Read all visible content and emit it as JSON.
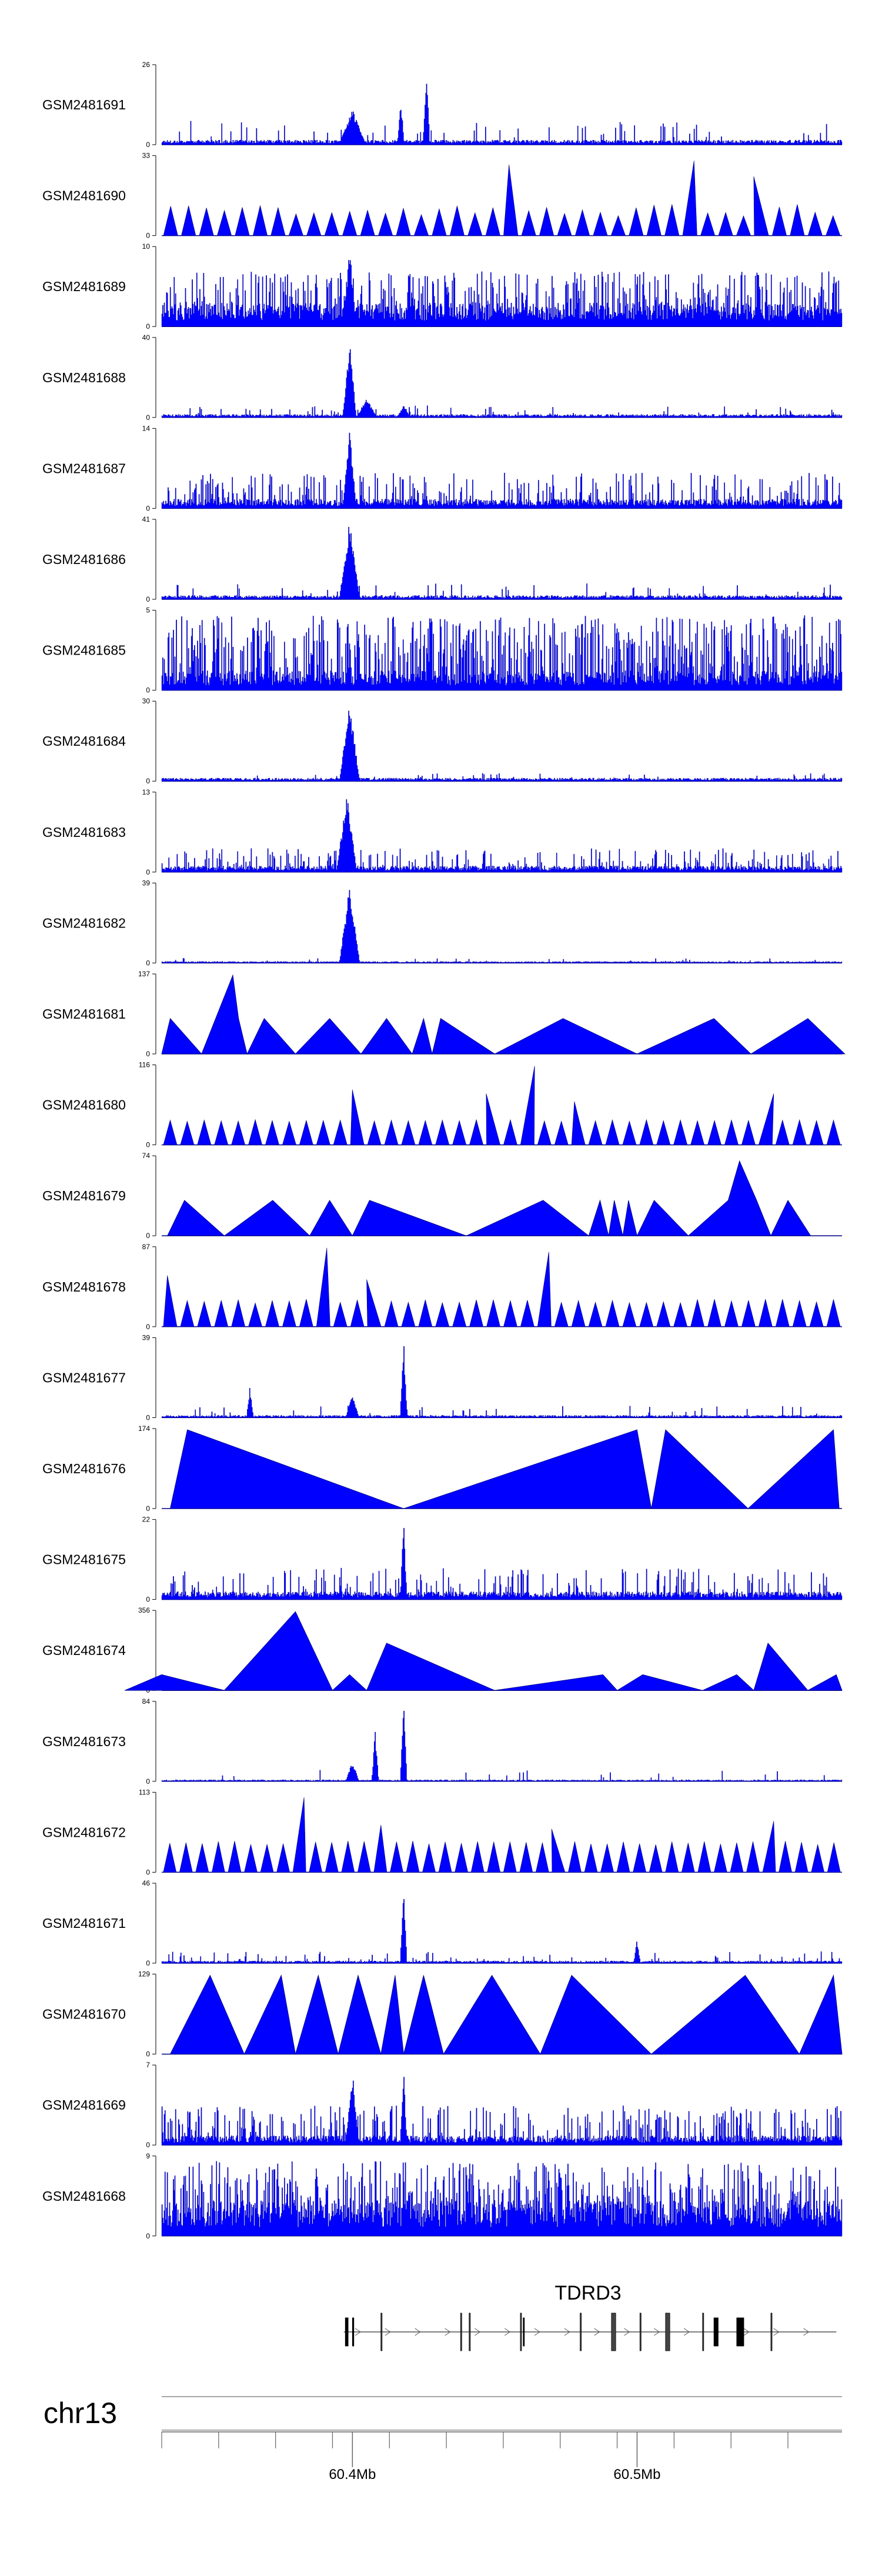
{
  "chart_data": {
    "type": "area",
    "title": "",
    "tracks": [
      {
        "name": "GSM2481691",
        "ymax": 26,
        "ymin": 0,
        "style": "noise",
        "base": 0.06,
        "spike_prob": 0.05,
        "spike_max": 0.3,
        "peaks": [
          {
            "at": 60.4,
            "h": 0.45,
            "w": 0.004
          },
          {
            "at": 60.417,
            "h": 0.6,
            "w": 0.001
          },
          {
            "at": 60.426,
            "h": 1.0,
            "w": 0.001
          }
        ]
      },
      {
        "name": "GSM2481690",
        "ymax": 33,
        "ymin": 0,
        "style": "triangles",
        "n": 38,
        "hmin": 0.25,
        "hmax": 0.4,
        "tall": [
          {
            "at": 60.52,
            "h": 0.95
          },
          {
            "at": 60.541,
            "h": 0.75
          },
          {
            "at": 60.455,
            "h": 0.9
          }
        ]
      },
      {
        "name": "GSM2481689",
        "ymax": 10,
        "ymin": 0,
        "style": "noise",
        "base": 0.3,
        "spike_prob": 0.35,
        "spike_max": 0.7,
        "peaks": [
          {
            "at": 60.399,
            "h": 1.0,
            "w": 0.002
          }
        ]
      },
      {
        "name": "GSM2481688",
        "ymax": 40,
        "ymin": 0,
        "style": "noise",
        "base": 0.04,
        "spike_prob": 0.04,
        "spike_max": 0.15,
        "peaks": [
          {
            "at": 60.399,
            "h": 1.0,
            "w": 0.002
          },
          {
            "at": 60.405,
            "h": 0.25,
            "w": 0.003
          },
          {
            "at": 60.418,
            "h": 0.15,
            "w": 0.002
          }
        ]
      },
      {
        "name": "GSM2481687",
        "ymax": 14,
        "ymin": 0,
        "style": "noise",
        "base": 0.12,
        "spike_prob": 0.2,
        "spike_max": 0.45,
        "peaks": [
          {
            "at": 60.399,
            "h": 1.0,
            "w": 0.002
          }
        ]
      },
      {
        "name": "GSM2481686",
        "ymax": 41,
        "ymin": 0,
        "style": "noise",
        "base": 0.05,
        "spike_prob": 0.06,
        "spike_max": 0.2,
        "peaks": [
          {
            "at": 60.399,
            "h": 1.0,
            "w": 0.003
          }
        ]
      },
      {
        "name": "GSM2481685",
        "ymax": 5,
        "ymin": 0,
        "style": "noise",
        "base": 0.25,
        "spike_prob": 0.45,
        "spike_max": 0.95,
        "peaks": []
      },
      {
        "name": "GSM2481684",
        "ymax": 30,
        "ymin": 0,
        "style": "noise",
        "base": 0.04,
        "spike_prob": 0.04,
        "spike_max": 0.1,
        "peaks": [
          {
            "at": 60.399,
            "h": 1.0,
            "w": 0.003
          }
        ]
      },
      {
        "name": "GSM2481683",
        "ymax": 13,
        "ymin": 0,
        "style": "noise",
        "base": 0.08,
        "spike_prob": 0.2,
        "spike_max": 0.3,
        "peaks": [
          {
            "at": 60.398,
            "h": 1.0,
            "w": 0.003
          }
        ]
      },
      {
        "name": "GSM2481682",
        "ymax": 39,
        "ymin": 0,
        "style": "noise",
        "base": 0.02,
        "spike_prob": 0.03,
        "spike_max": 0.06,
        "peaks": [
          {
            "at": 60.399,
            "h": 1.0,
            "w": 0.003
          }
        ]
      },
      {
        "name": "GSM2481681",
        "ymax": 137,
        "ymin": 0,
        "style": "polyline",
        "points": [
          [
            60.333,
            0
          ],
          [
            60.336,
            0.45
          ],
          [
            60.347,
            0
          ],
          [
            60.358,
            1.0
          ],
          [
            60.36,
            0.45
          ],
          [
            60.363,
            0
          ],
          [
            60.369,
            0.45
          ],
          [
            60.38,
            0
          ],
          [
            60.392,
            0.45
          ],
          [
            60.403,
            0
          ],
          [
            60.412,
            0.45
          ],
          [
            60.421,
            0
          ],
          [
            60.425,
            0.45
          ],
          [
            60.428,
            0
          ],
          [
            60.431,
            0.45
          ],
          [
            60.45,
            0
          ],
          [
            60.474,
            0.45
          ],
          [
            60.5,
            0
          ],
          [
            60.527,
            0.45
          ],
          [
            60.54,
            0
          ],
          [
            60.56,
            0.45
          ],
          [
            60.573,
            0
          ]
        ]
      },
      {
        "name": "GSM2481680",
        "ymax": 116,
        "ymin": 0,
        "style": "triangles",
        "n": 40,
        "hmin": 0.3,
        "hmax": 0.32,
        "tall": [
          {
            "at": 60.464,
            "h": 1.0
          },
          {
            "at": 60.548,
            "h": 0.65
          },
          {
            "at": 60.4,
            "h": 0.7
          },
          {
            "at": 60.447,
            "h": 0.65
          },
          {
            "at": 60.478,
            "h": 0.55
          }
        ]
      },
      {
        "name": "GSM2481679",
        "ymax": 74,
        "ymin": 0,
        "style": "polyline",
        "points": [
          [
            60.335,
            0
          ],
          [
            60.341,
            0.45
          ],
          [
            60.355,
            0
          ],
          [
            60.372,
            0.45
          ],
          [
            60.385,
            0
          ],
          [
            60.392,
            0.45
          ],
          [
            60.4,
            0
          ],
          [
            60.406,
            0.45
          ],
          [
            60.44,
            0
          ],
          [
            60.467,
            0.45
          ],
          [
            60.483,
            0
          ],
          [
            60.487,
            0.45
          ],
          [
            60.49,
            0
          ],
          [
            60.492,
            0.45
          ],
          [
            60.495,
            0
          ],
          [
            60.497,
            0.45
          ],
          [
            60.5,
            0
          ],
          [
            60.506,
            0.45
          ],
          [
            60.518,
            0
          ],
          [
            60.532,
            0.45
          ],
          [
            60.536,
            0.95
          ],
          [
            60.542,
            0.45
          ],
          [
            60.547,
            0
          ],
          [
            60.553,
            0.45
          ],
          [
            60.561,
            0
          ]
        ]
      },
      {
        "name": "GSM2481678",
        "ymax": 87,
        "ymin": 0,
        "style": "triangles",
        "n": 40,
        "hmin": 0.3,
        "hmax": 0.35,
        "tall": [
          {
            "at": 60.335,
            "h": 0.65
          },
          {
            "at": 60.391,
            "h": 1.0
          },
          {
            "at": 60.469,
            "h": 0.95
          },
          {
            "at": 60.405,
            "h": 0.6
          }
        ]
      },
      {
        "name": "GSM2481677",
        "ymax": 39,
        "ymin": 0,
        "style": "noise",
        "base": 0.03,
        "spike_prob": 0.04,
        "spike_max": 0.15,
        "peaks": [
          {
            "at": 60.418,
            "h": 1.0,
            "w": 0.001
          },
          {
            "at": 60.4,
            "h": 0.3,
            "w": 0.002
          },
          {
            "at": 60.364,
            "h": 0.4,
            "w": 0.001
          }
        ]
      },
      {
        "name": "GSM2481676",
        "ymax": 174,
        "ymin": 0,
        "style": "polyline",
        "points": [
          [
            60.336,
            0
          ],
          [
            60.342,
            1.0
          ],
          [
            60.418,
            0
          ],
          [
            60.5,
            1.0
          ],
          [
            60.505,
            0
          ],
          [
            60.51,
            1.0
          ],
          [
            60.539,
            0
          ],
          [
            60.569,
            1.0
          ],
          [
            60.571,
            0
          ]
        ]
      },
      {
        "name": "GSM2481675",
        "ymax": 22,
        "ymin": 0,
        "style": "noise",
        "base": 0.1,
        "spike_prob": 0.15,
        "spike_max": 0.4,
        "peaks": [
          {
            "at": 60.418,
            "h": 1.0,
            "w": 0.001
          }
        ]
      },
      {
        "name": "GSM2481674",
        "ymax": 356,
        "ymin": 0,
        "style": "polyline",
        "points": [
          [
            60.32,
            0
          ],
          [
            60.333,
            0.2
          ],
          [
            60.355,
            0
          ],
          [
            60.38,
            1.0
          ],
          [
            60.393,
            0
          ],
          [
            60.399,
            0.2
          ],
          [
            60.405,
            0
          ],
          [
            60.412,
            0.6
          ],
          [
            60.45,
            0
          ],
          [
            60.488,
            0.2
          ],
          [
            60.493,
            0
          ],
          [
            60.502,
            0.2
          ],
          [
            60.523,
            0
          ],
          [
            60.535,
            0.2
          ],
          [
            60.541,
            0
          ],
          [
            60.546,
            0.6
          ],
          [
            60.56,
            0
          ],
          [
            60.57,
            0.2
          ],
          [
            60.572,
            0
          ]
        ]
      },
      {
        "name": "GSM2481673",
        "ymax": 84,
        "ymin": 0,
        "style": "noise",
        "base": 0.02,
        "spike_prob": 0.03,
        "spike_max": 0.15,
        "peaks": [
          {
            "at": 60.418,
            "h": 1.0,
            "w": 0.001
          },
          {
            "at": 60.408,
            "h": 0.65,
            "w": 0.001
          },
          {
            "at": 60.4,
            "h": 0.25,
            "w": 0.002
          }
        ]
      },
      {
        "name": "GSM2481672",
        "ymax": 113,
        "ymin": 0,
        "style": "triangles",
        "n": 42,
        "hmin": 0.35,
        "hmax": 0.4,
        "tall": [
          {
            "at": 60.383,
            "h": 0.95
          },
          {
            "at": 60.548,
            "h": 0.65
          },
          {
            "at": 60.41,
            "h": 0.6
          },
          {
            "at": 60.47,
            "h": 0.55
          }
        ]
      },
      {
        "name": "GSM2481671",
        "ymax": 46,
        "ymin": 0,
        "style": "noise",
        "base": 0.03,
        "spike_prob": 0.06,
        "spike_max": 0.15,
        "peaks": [
          {
            "at": 60.418,
            "h": 1.0,
            "w": 0.001
          },
          {
            "at": 60.5,
            "h": 0.3,
            "w": 0.001
          }
        ]
      },
      {
        "name": "GSM2481670",
        "ymax": 129,
        "ymin": 0,
        "style": "polyline",
        "points": [
          [
            60.336,
            0
          ],
          [
            60.35,
            1.0
          ],
          [
            60.362,
            0
          ],
          [
            60.375,
            1.0
          ],
          [
            60.38,
            0
          ],
          [
            60.388,
            1.0
          ],
          [
            60.395,
            0
          ],
          [
            60.402,
            1.0
          ],
          [
            60.41,
            0
          ],
          [
            60.415,
            1.0
          ],
          [
            60.418,
            0
          ],
          [
            60.425,
            1.0
          ],
          [
            60.432,
            0
          ],
          [
            60.449,
            1.0
          ],
          [
            60.466,
            0
          ],
          [
            60.477,
            1.0
          ],
          [
            60.505,
            0
          ],
          [
            60.538,
            1.0
          ],
          [
            60.557,
            0
          ],
          [
            60.569,
            1.0
          ],
          [
            60.572,
            0
          ]
        ]
      },
      {
        "name": "GSM2481669",
        "ymax": 7,
        "ymin": 0,
        "style": "noise",
        "base": 0.12,
        "spike_prob": 0.22,
        "spike_max": 0.5,
        "peaks": [
          {
            "at": 60.4,
            "h": 0.95,
            "w": 0.002
          },
          {
            "at": 60.418,
            "h": 1.0,
            "w": 0.001
          }
        ]
      },
      {
        "name": "GSM2481668",
        "ymax": 9,
        "ymin": 0,
        "style": "noise",
        "base": 0.45,
        "spike_prob": 0.4,
        "spike_max": 0.95,
        "peaks": []
      }
    ],
    "gene": {
      "name": "TDRD3",
      "start": 60.397,
      "end": 60.57,
      "exons": [
        [
          60.3975,
          60.3985,
          "thick"
        ],
        [
          60.4,
          60.4005,
          "thick"
        ],
        [
          60.41,
          60.4104,
          "thin"
        ],
        [
          60.438,
          60.4384,
          "thin"
        ],
        [
          60.441,
          60.4414,
          "thin"
        ],
        [
          60.459,
          60.4593,
          "thin"
        ],
        [
          60.46,
          60.4603,
          "thick"
        ],
        [
          60.48,
          60.4804,
          "thin"
        ],
        [
          60.491,
          60.4925,
          "thin"
        ],
        [
          60.501,
          60.5014,
          "thin"
        ],
        [
          60.51,
          60.5115,
          "thin"
        ],
        [
          60.523,
          60.5234,
          "thin"
        ],
        [
          60.527,
          60.5285,
          "thick"
        ],
        [
          60.535,
          60.5375,
          "thick"
        ],
        [
          60.547,
          60.5474,
          "thin"
        ]
      ]
    },
    "chromosome": "chr13",
    "x_axis": {
      "xlim": [
        60.333,
        60.572
      ],
      "minor_ticks": [
        60.333,
        60.353,
        60.373,
        60.393,
        60.413,
        60.433,
        60.453,
        60.473,
        60.493,
        60.513,
        60.533,
        60.553
      ],
      "labeled_ticks": [
        {
          "pos": 60.4,
          "label": "60.4Mb"
        },
        {
          "pos": 60.5,
          "label": "60.5Mb"
        }
      ]
    }
  }
}
